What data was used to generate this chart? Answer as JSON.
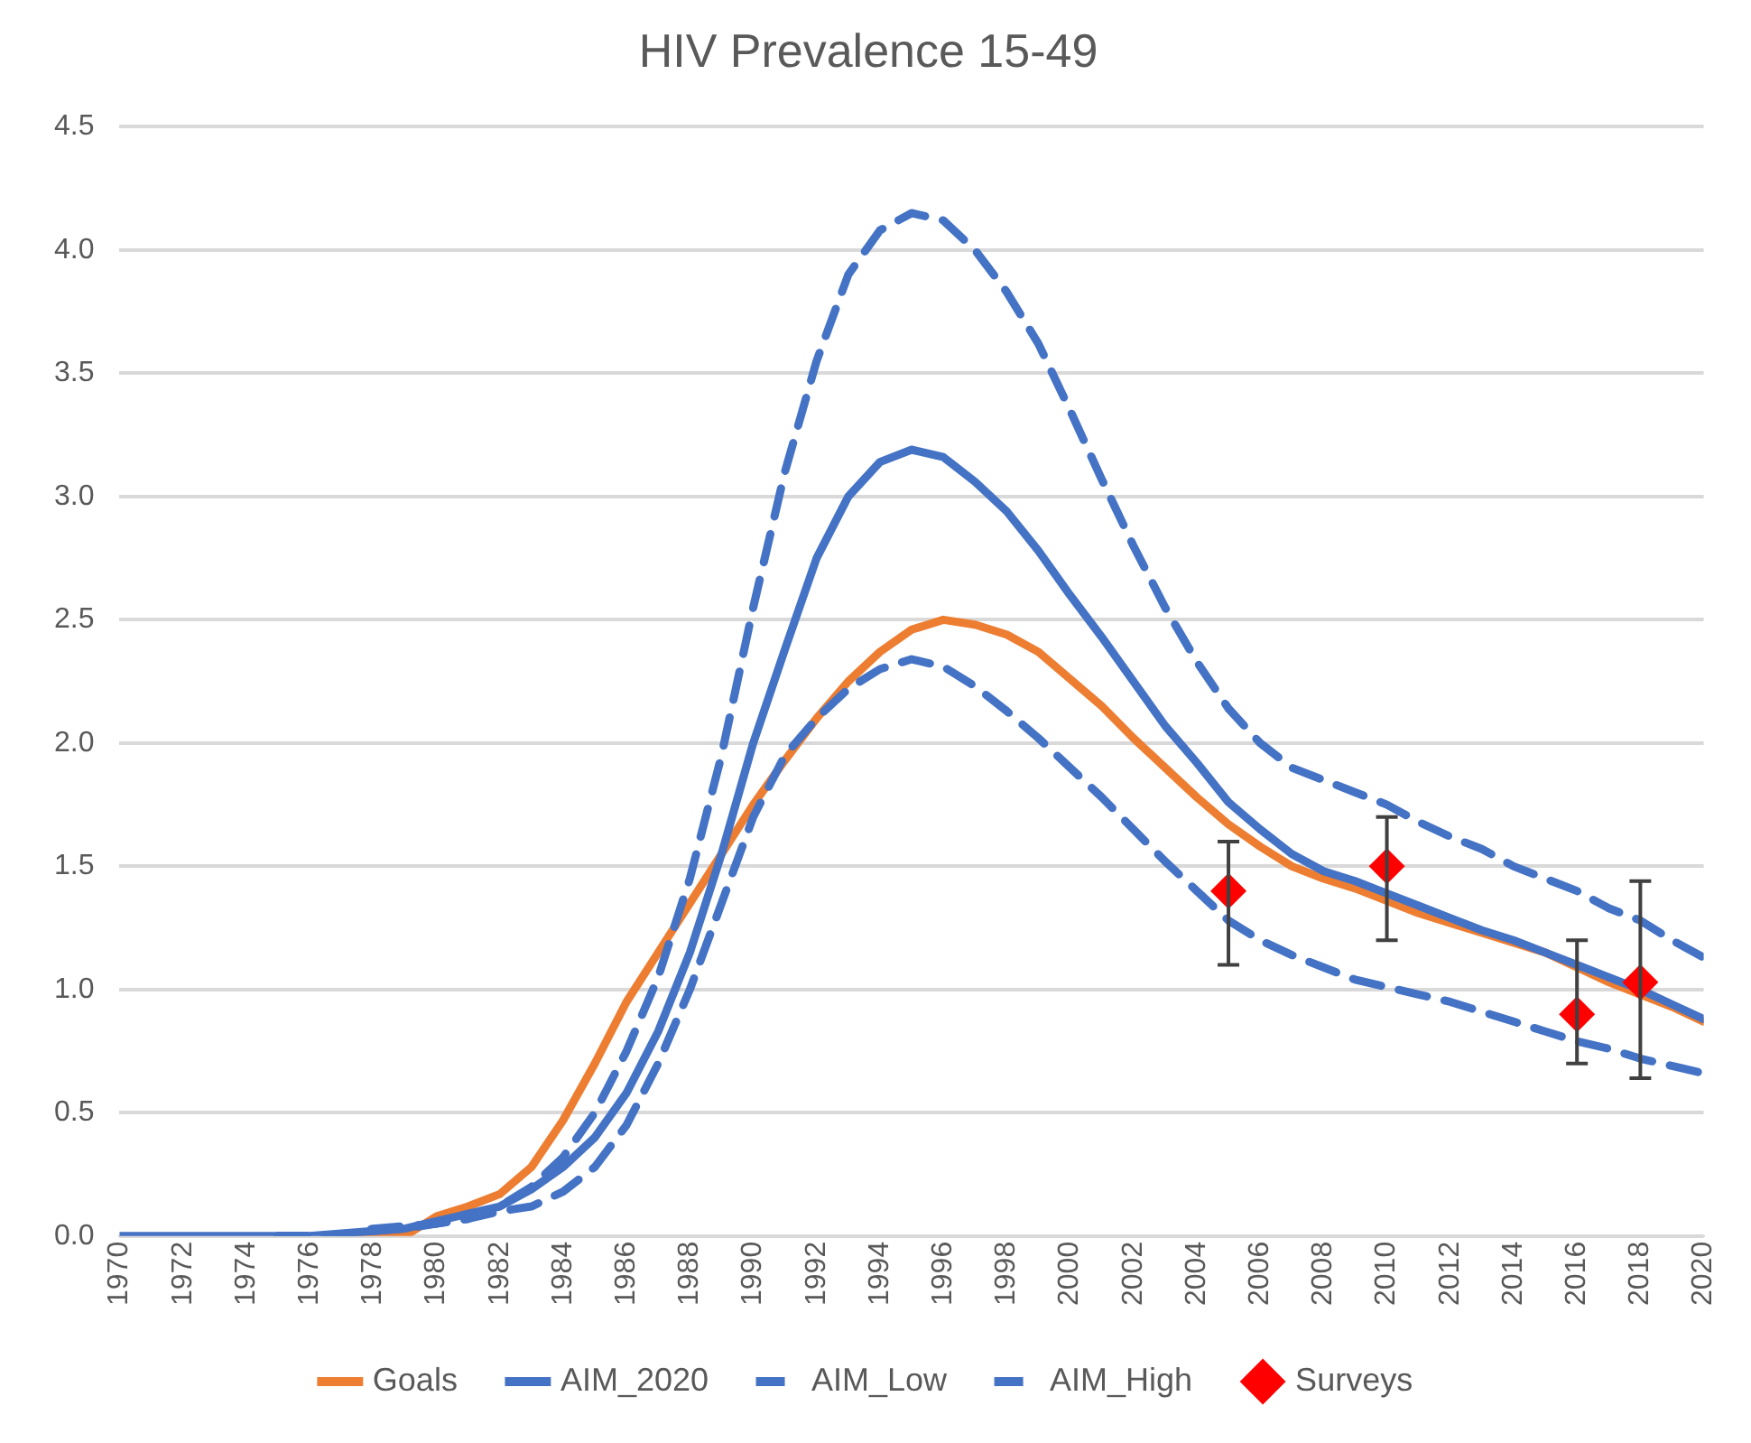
{
  "chart_data": {
    "type": "line",
    "title": "HIV Prevalence 15-49",
    "xlim": [
      1970,
      2020
    ],
    "xticks": [
      1970,
      1972,
      1974,
      1976,
      1978,
      1980,
      1982,
      1984,
      1986,
      1988,
      1990,
      1992,
      1994,
      1996,
      1998,
      2000,
      2002,
      2004,
      2006,
      2008,
      2010,
      2012,
      2014,
      2016,
      2018,
      2020
    ],
    "ylim": [
      0,
      4.5
    ],
    "yticks": [
      {
        "value": 0,
        "label": "0.0"
      },
      {
        "value": 0.5,
        "label": "0.5"
      },
      {
        "value": 1,
        "label": "1.0"
      },
      {
        "value": 1.5,
        "label": "1.5"
      },
      {
        "value": 2,
        "label": "2.0"
      },
      {
        "value": 2.5,
        "label": "2.5"
      },
      {
        "value": 3,
        "label": "3.0"
      },
      {
        "value": 3.5,
        "label": "3.5"
      },
      {
        "value": 4,
        "label": "4.0"
      },
      {
        "value": 4.5,
        "label": "4.5"
      }
    ],
    "grid": "y",
    "legend": "bottom",
    "x": [
      1970,
      1971,
      1972,
      1973,
      1974,
      1975,
      1976,
      1977,
      1978,
      1979,
      1980,
      1981,
      1982,
      1983,
      1984,
      1985,
      1986,
      1987,
      1988,
      1989,
      1990,
      1991,
      1992,
      1993,
      1994,
      1995,
      1996,
      1997,
      1998,
      1999,
      2000,
      2001,
      2002,
      2003,
      2004,
      2005,
      2006,
      2007,
      2008,
      2009,
      2010,
      2011,
      2012,
      2013,
      2014,
      2015,
      2016,
      2017,
      2018,
      2019,
      2020
    ],
    "series": [
      {
        "name": "Goals",
        "color": "#ed7d31",
        "line_style": "solid",
        "marker": "none",
        "values": [
          null,
          null,
          null,
          null,
          null,
          null,
          null,
          0,
          0,
          0,
          0.08,
          0.12,
          0.17,
          0.28,
          0.47,
          0.7,
          0.95,
          1.15,
          1.35,
          1.55,
          1.75,
          1.93,
          2.1,
          2.25,
          2.37,
          2.46,
          2.5,
          2.48,
          2.44,
          2.37,
          2.26,
          2.15,
          2.02,
          1.9,
          1.78,
          1.67,
          1.58,
          1.5,
          1.45,
          1.41,
          1.36,
          1.31,
          1.27,
          1.23,
          1.19,
          1.15,
          1.09,
          1.03,
          0.98,
          0.93,
          0.87
        ]
      },
      {
        "name": "AIM_2020",
        "color": "#4472c4",
        "line_style": "solid",
        "marker": "none",
        "values": [
          0,
          0,
          0,
          0,
          0,
          0,
          0,
          0.01,
          0.02,
          0.03,
          0.06,
          0.09,
          0.12,
          0.19,
          0.28,
          0.4,
          0.58,
          0.83,
          1.15,
          1.55,
          2.0,
          2.38,
          2.75,
          3.0,
          3.14,
          3.19,
          3.16,
          3.06,
          2.94,
          2.78,
          2.6,
          2.43,
          2.25,
          2.07,
          1.92,
          1.76,
          1.65,
          1.55,
          1.48,
          1.44,
          1.39,
          1.34,
          1.29,
          1.24,
          1.2,
          1.15,
          1.1,
          1.05,
          1.0,
          0.94,
          0.88
        ]
      },
      {
        "name": "AIM_Low",
        "color": "#4472c4",
        "line_style": "dashed",
        "marker": "none",
        "values": [
          null,
          null,
          null,
          null,
          null,
          0,
          0,
          0,
          0.02,
          0.03,
          0.05,
          0.07,
          0.1,
          0.12,
          0.18,
          0.28,
          0.45,
          0.7,
          1.0,
          1.35,
          1.7,
          1.95,
          2.1,
          2.22,
          2.3,
          2.34,
          2.31,
          2.23,
          2.13,
          2.02,
          1.9,
          1.78,
          1.65,
          1.52,
          1.4,
          1.28,
          1.2,
          1.14,
          1.09,
          1.04,
          1.01,
          0.98,
          0.95,
          0.91,
          0.87,
          0.83,
          0.79,
          0.76,
          0.72,
          0.69,
          0.66
        ]
      },
      {
        "name": "AIM_High",
        "color": "#4472c4",
        "line_style": "dashed",
        "marker": "none",
        "values": [
          null,
          null,
          null,
          null,
          null,
          0,
          0,
          0,
          0.03,
          0.04,
          0.05,
          0.07,
          0.12,
          0.2,
          0.32,
          0.5,
          0.75,
          1.05,
          1.45,
          1.95,
          2.55,
          3.1,
          3.55,
          3.9,
          4.08,
          4.15,
          4.12,
          4.0,
          3.83,
          3.62,
          3.35,
          3.07,
          2.8,
          2.55,
          2.33,
          2.14,
          2.0,
          1.9,
          1.85,
          1.8,
          1.75,
          1.68,
          1.62,
          1.57,
          1.5,
          1.45,
          1.4,
          1.33,
          1.28,
          1.2,
          1.13
        ]
      },
      {
        "name": "Surveys",
        "type": "scatter",
        "color": "#ff0000",
        "marker": "diamond",
        "x": [
          2005,
          2010,
          2016,
          2018
        ],
        "values": [
          1.4,
          1.5,
          0.9,
          1.03
        ],
        "errors": [
          [
            1.1,
            1.6
          ],
          [
            1.2,
            1.7
          ],
          [
            0.7,
            1.2
          ],
          [
            0.64,
            1.44
          ]
        ]
      }
    ]
  }
}
